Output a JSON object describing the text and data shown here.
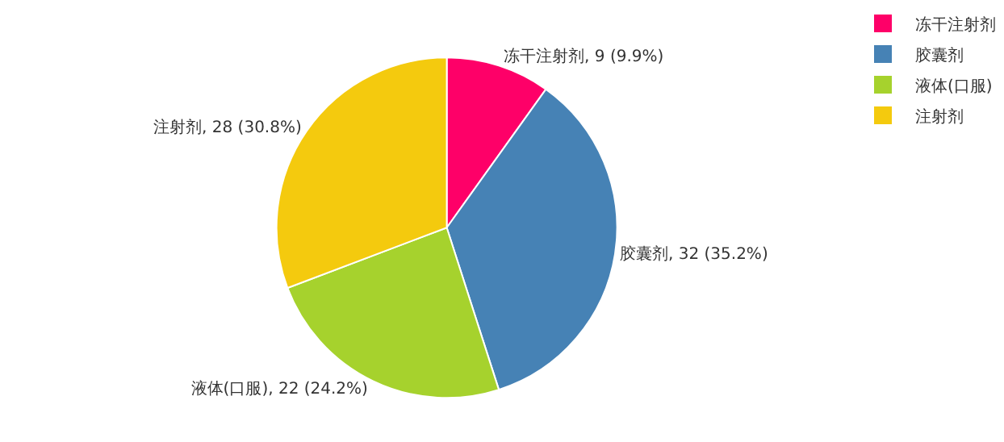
{
  "chart_data": {
    "type": "pie",
    "categories": [
      "冻干注射剂",
      "胶囊剂",
      "液体(口服)",
      "注射剂"
    ],
    "values": [
      9,
      32,
      22,
      28
    ],
    "colors": [
      "#fe0068",
      "#4682b5",
      "#a6d22d",
      "#f4ca0e"
    ],
    "value_labels": [
      "冻干注射剂, 9 (9.9%)",
      "胶囊剂, 32 (35.2%)",
      "液体(口服), 22 (24.2%)",
      "注射剂, 28 (30.8%)"
    ],
    "legend": "top right"
  }
}
